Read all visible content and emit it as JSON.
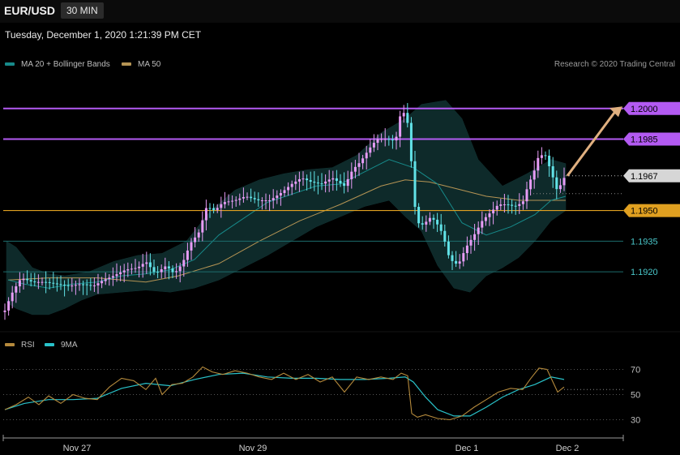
{
  "header": {
    "symbol": "EUR/USD",
    "timeframe": "30 MIN",
    "datetime": "Tuesday, December 1, 2020 1:21:39 PM CET"
  },
  "legend": {
    "ma20_label": "MA 20 + Bollinger Bands",
    "ma50_label": "MA 50",
    "credit": "Research © 2020 Trading Central",
    "rsi_label": "RSI",
    "rsi_ma_label": "9MA"
  },
  "colors": {
    "background": "#000000",
    "band_fill": "#0e2a2a",
    "ma20": "#178a8a",
    "ma50": "#b59454",
    "bull_candle": "#e79cf6",
    "bear_candle": "#62e3e8",
    "resistance": "#b35af2",
    "pivot": "#e0a020",
    "support": "#1d6d6d",
    "current": "#d6d6d6",
    "arrow": "#e0b080",
    "rsi": "#b58a3c",
    "rsi_ma": "#29c2c9"
  },
  "chart_data": [
    {
      "type": "candlestick",
      "symbol": "EUR/USD",
      "interval": "30 MIN",
      "ylim": [
        1.1895,
        1.2015
      ],
      "x_ticks": [
        "Nov 27",
        "Nov 29",
        "Dec 1",
        "Dec 2"
      ],
      "levels": [
        {
          "value": "1.2000",
          "kind": "resistance"
        },
        {
          "value": "1.1985",
          "kind": "resistance"
        },
        {
          "value": "1.1967",
          "kind": "current"
        },
        {
          "value": "1.1950",
          "kind": "pivot"
        },
        {
          "value": "1.1935",
          "kind": "support"
        },
        {
          "value": "1.1920",
          "kind": "support"
        }
      ],
      "close_path": [
        [
          0,
          1.19
        ],
        [
          6,
          1.1901
        ],
        [
          14,
          1.1909
        ],
        [
          26,
          1.1917
        ],
        [
          40,
          1.1915
        ],
        [
          55,
          1.1915
        ],
        [
          70,
          1.1914
        ],
        [
          85,
          1.1913
        ],
        [
          100,
          1.1914
        ],
        [
          115,
          1.1913
        ],
        [
          128,
          1.1916
        ],
        [
          140,
          1.1918
        ],
        [
          155,
          1.1921
        ],
        [
          170,
          1.1922
        ],
        [
          180,
          1.1925
        ],
        [
          192,
          1.1919
        ],
        [
          205,
          1.1923
        ],
        [
          215,
          1.1919
        ],
        [
          225,
          1.1924
        ],
        [
          235,
          1.1934
        ],
        [
          245,
          1.1939
        ],
        [
          255,
          1.1952
        ],
        [
          265,
          1.195
        ],
        [
          275,
          1.1954
        ],
        [
          290,
          1.1955
        ],
        [
          303,
          1.1957
        ],
        [
          318,
          1.1955
        ],
        [
          333,
          1.1955
        ],
        [
          348,
          1.1959
        ],
        [
          360,
          1.1963
        ],
        [
          372,
          1.1966
        ],
        [
          384,
          1.1964
        ],
        [
          396,
          1.1963
        ],
        [
          410,
          1.1966
        ],
        [
          425,
          1.1962
        ],
        [
          435,
          1.197
        ],
        [
          445,
          1.1974
        ],
        [
          455,
          1.198
        ],
        [
          465,
          1.1985
        ],
        [
          478,
          1.1985
        ],
        [
          488,
          1.1984
        ],
        [
          494,
          1.1997
        ],
        [
          499,
          1.1998
        ],
        [
          505,
          1.199
        ],
        [
          510,
          1.1957
        ],
        [
          515,
          1.1944
        ],
        [
          522,
          1.1943
        ],
        [
          532,
          1.1947
        ],
        [
          540,
          1.1943
        ],
        [
          547,
          1.1938
        ],
        [
          552,
          1.1929
        ],
        [
          560,
          1.1924
        ],
        [
          566,
          1.1924
        ],
        [
          575,
          1.1932
        ],
        [
          585,
          1.1938
        ],
        [
          595,
          1.1945
        ],
        [
          605,
          1.1949
        ],
        [
          615,
          1.1953
        ],
        [
          625,
          1.1953
        ],
        [
          635,
          1.1952
        ],
        [
          645,
          1.1954
        ],
        [
          652,
          1.1963
        ],
        [
          658,
          1.1968
        ],
        [
          664,
          1.1976
        ],
        [
          672,
          1.1978
        ],
        [
          680,
          1.1969
        ],
        [
          688,
          1.1959
        ],
        [
          694,
          1.1965
        ],
        [
          698,
          1.1967
        ]
      ],
      "ma20_path": [
        [
          10,
          1.1916
        ],
        [
          30,
          1.1914
        ],
        [
          60,
          1.1912
        ],
        [
          90,
          1.1914
        ],
        [
          120,
          1.1915
        ],
        [
          150,
          1.1918
        ],
        [
          180,
          1.1919
        ],
        [
          210,
          1.1921
        ],
        [
          240,
          1.1926
        ],
        [
          270,
          1.1938
        ],
        [
          300,
          1.1946
        ],
        [
          330,
          1.1954
        ],
        [
          360,
          1.1958
        ],
        [
          390,
          1.1962
        ],
        [
          420,
          1.1963
        ],
        [
          450,
          1.1969
        ],
        [
          480,
          1.1975
        ],
        [
          510,
          1.1971
        ],
        [
          540,
          1.1963
        ],
        [
          570,
          1.1944
        ],
        [
          600,
          1.1938
        ],
        [
          630,
          1.1942
        ],
        [
          660,
          1.1948
        ],
        [
          680,
          1.1955
        ],
        [
          698,
          1.1957
        ]
      ],
      "ma50_path": [
        [
          10,
          1.1916
        ],
        [
          60,
          1.1917
        ],
        [
          120,
          1.1917
        ],
        [
          180,
          1.1915
        ],
        [
          220,
          1.1918
        ],
        [
          270,
          1.1924
        ],
        [
          320,
          1.1935
        ],
        [
          370,
          1.1945
        ],
        [
          420,
          1.1953
        ],
        [
          470,
          1.1962
        ],
        [
          500,
          1.1965
        ],
        [
          530,
          1.1964
        ],
        [
          560,
          1.1961
        ],
        [
          600,
          1.1957
        ],
        [
          640,
          1.1955
        ],
        [
          670,
          1.1955
        ],
        [
          698,
          1.1955
        ]
      ],
      "band_upper": [
        [
          8,
          1.1935
        ],
        [
          20,
          1.1932
        ],
        [
          40,
          1.1922
        ],
        [
          60,
          1.1919
        ],
        [
          80,
          1.1918
        ],
        [
          110,
          1.192
        ],
        [
          140,
          1.1925
        ],
        [
          170,
          1.1928
        ],
        [
          200,
          1.1929
        ],
        [
          230,
          1.1935
        ],
        [
          260,
          1.195
        ],
        [
          290,
          1.196
        ],
        [
          320,
          1.1965
        ],
        [
          350,
          1.1968
        ],
        [
          380,
          1.197
        ],
        [
          410,
          1.1971
        ],
        [
          440,
          1.1977
        ],
        [
          470,
          1.1988
        ],
        [
          500,
          1.1995
        ],
        [
          520,
          1.2002
        ],
        [
          550,
          1.2004
        ],
        [
          570,
          1.1995
        ],
        [
          590,
          1.1975
        ],
        [
          620,
          1.1962
        ],
        [
          650,
          1.1968
        ],
        [
          680,
          1.1975
        ],
        [
          698,
          1.1973
        ]
      ],
      "band_lower": [
        [
          698,
          1.195
        ],
        [
          680,
          1.1945
        ],
        [
          660,
          1.1935
        ],
        [
          640,
          1.1927
        ],
        [
          620,
          1.1922
        ],
        [
          600,
          1.1918
        ],
        [
          580,
          1.191
        ],
        [
          560,
          1.1912
        ],
        [
          540,
          1.1923
        ],
        [
          520,
          1.194
        ],
        [
          500,
          1.1947
        ],
        [
          480,
          1.1955
        ],
        [
          450,
          1.1952
        ],
        [
          420,
          1.1947
        ],
        [
          390,
          1.1942
        ],
        [
          360,
          1.1935
        ],
        [
          330,
          1.1928
        ],
        [
          300,
          1.1922
        ],
        [
          270,
          1.1916
        ],
        [
          240,
          1.1912
        ],
        [
          210,
          1.191
        ],
        [
          180,
          1.1911
        ],
        [
          150,
          1.191
        ],
        [
          120,
          1.1909
        ],
        [
          100,
          1.1906
        ],
        [
          80,
          1.1902
        ],
        [
          60,
          1.1899
        ],
        [
          40,
          1.1899
        ],
        [
          20,
          1.1902
        ],
        [
          8,
          1.1905
        ]
      ]
    },
    {
      "type": "line",
      "name": "RSI",
      "ylim": [
        20,
        80
      ],
      "y_ticks": [
        "70",
        "50",
        "30"
      ],
      "rsi": [
        [
          6,
          38
        ],
        [
          20,
          42
        ],
        [
          35,
          48
        ],
        [
          48,
          42
        ],
        [
          60,
          49
        ],
        [
          75,
          43
        ],
        [
          90,
          50
        ],
        [
          105,
          47
        ],
        [
          120,
          46
        ],
        [
          135,
          56
        ],
        [
          150,
          63
        ],
        [
          165,
          61
        ],
        [
          180,
          54
        ],
        [
          192,
          63
        ],
        [
          200,
          50
        ],
        [
          212,
          58
        ],
        [
          225,
          59
        ],
        [
          238,
          64
        ],
        [
          250,
          72
        ],
        [
          262,
          68
        ],
        [
          275,
          66
        ],
        [
          290,
          69
        ],
        [
          305,
          67
        ],
        [
          320,
          64
        ],
        [
          335,
          62
        ],
        [
          350,
          67
        ],
        [
          365,
          62
        ],
        [
          380,
          66
        ],
        [
          395,
          60
        ],
        [
          410,
          64
        ],
        [
          425,
          52
        ],
        [
          440,
          64
        ],
        [
          455,
          62
        ],
        [
          470,
          64
        ],
        [
          485,
          62
        ],
        [
          495,
          67
        ],
        [
          503,
          65
        ],
        [
          508,
          35
        ],
        [
          515,
          32
        ],
        [
          525,
          34
        ],
        [
          540,
          31
        ],
        [
          555,
          30
        ],
        [
          570,
          33
        ],
        [
          585,
          40
        ],
        [
          600,
          46
        ],
        [
          615,
          52
        ],
        [
          630,
          55
        ],
        [
          645,
          54
        ],
        [
          655,
          63
        ],
        [
          665,
          71
        ],
        [
          675,
          70
        ],
        [
          688,
          52
        ],
        [
          696,
          56
        ]
      ],
      "rsi_ma": [
        [
          6,
          38
        ],
        [
          30,
          43
        ],
        [
          60,
          46
        ],
        [
          90,
          46
        ],
        [
          120,
          47
        ],
        [
          150,
          55
        ],
        [
          180,
          59
        ],
        [
          210,
          57
        ],
        [
          240,
          62
        ],
        [
          270,
          66
        ],
        [
          300,
          67
        ],
        [
          330,
          64
        ],
        [
          360,
          63
        ],
        [
          390,
          63
        ],
        [
          420,
          62
        ],
        [
          450,
          62
        ],
        [
          480,
          63
        ],
        [
          500,
          64
        ],
        [
          510,
          60
        ],
        [
          525,
          48
        ],
        [
          540,
          38
        ],
        [
          560,
          33
        ],
        [
          580,
          33
        ],
        [
          600,
          40
        ],
        [
          620,
          48
        ],
        [
          640,
          54
        ],
        [
          660,
          58
        ],
        [
          680,
          64
        ],
        [
          696,
          62
        ]
      ]
    }
  ]
}
